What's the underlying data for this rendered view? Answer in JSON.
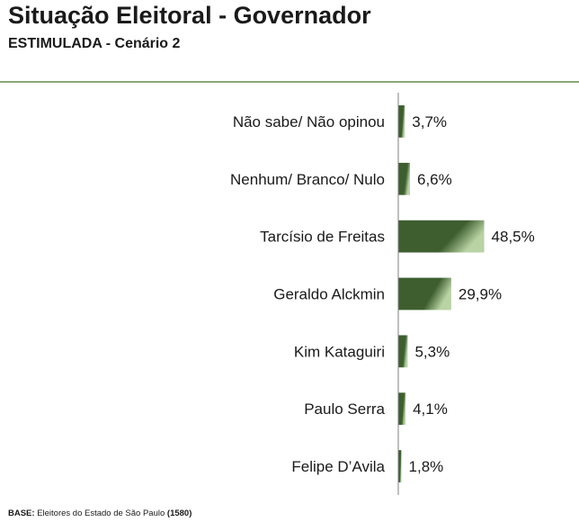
{
  "header": {
    "title": "Situação Eleitoral - Governador",
    "subtitle": "ESTIMULADA - Cenário 2"
  },
  "footer": {
    "base_label": "BASE:",
    "base_text": " Eleitores do Estado de São Paulo ",
    "base_count": "(1580)"
  },
  "colors": {
    "bar_dark": "#3e5e30",
    "bar_light": "#b9d3a4",
    "axis": "#7f7f7f",
    "divider": "#8aa878"
  },
  "chart_data": {
    "type": "bar",
    "orientation": "horizontal",
    "categories": [
      "Não sabe/ Não opinou",
      "Nenhum/ Branco/ Nulo",
      "Tarcísio de Freitas",
      "Geraldo Alckmin",
      "Kim Kataguiri",
      "Paulo Serra",
      "Felipe D’Avila"
    ],
    "values": [
      3.7,
      6.6,
      48.5,
      29.9,
      5.3,
      4.1,
      1.8
    ],
    "value_labels": [
      "3,7%",
      "6,6%",
      "48,5%",
      "29,9%",
      "5,3%",
      "4,1%",
      "1,8%"
    ],
    "xlim": [
      0,
      100
    ],
    "grid": false
  }
}
